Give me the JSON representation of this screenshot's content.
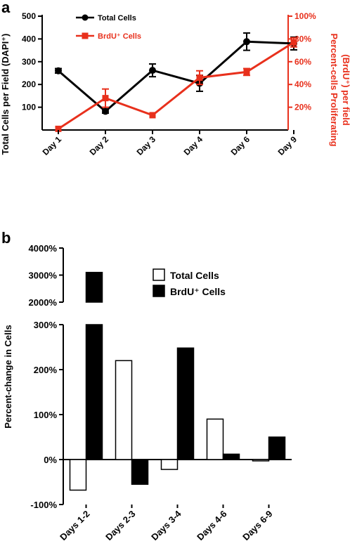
{
  "colors": {
    "black": "#000000",
    "red": "#e8301c"
  },
  "figure": {
    "panel_a_label": "a",
    "panel_b_label": "b"
  },
  "chart_data": [
    {
      "type": "line",
      "categories": [
        "Day 1",
        "Day 2",
        "Day 3",
        "Day 4",
        "Day 6",
        "Day 9"
      ],
      "ylabel": "Total Cells per Field (DAPI⁺)",
      "y2label_line1": "Percent-cells Proliferating",
      "y2label_line2": "(BrdU⁺) per field",
      "ylim": [
        0,
        500
      ],
      "y2lim": [
        0,
        100
      ],
      "y_ticks": [
        "100",
        "200",
        "300",
        "400",
        "500"
      ],
      "y2_ticks": [
        "20%",
        "40%",
        "60%",
        "80%",
        "100%"
      ],
      "legend_position": "top-left",
      "series": [
        {
          "name": "Total Cells",
          "axis": "left",
          "color": "#000000",
          "marker": "circle",
          "values": [
            260,
            82,
            262,
            205,
            388,
            380
          ],
          "errors": [
            10,
            8,
            28,
            35,
            38,
            28
          ]
        },
        {
          "name": "BrdU⁺ Cells",
          "axis": "right",
          "color": "#e8301c",
          "marker": "square",
          "values": [
            1,
            28,
            13,
            46,
            51,
            77
          ],
          "errors": [
            0,
            8,
            0,
            6,
            3,
            4
          ]
        }
      ]
    },
    {
      "type": "bar",
      "categories": [
        "Days 1-2",
        "Days 2-3",
        "Days 3-4",
        "Days 4-6",
        "Days 6-9"
      ],
      "ylabel": "Percent-change in Cells",
      "upper_ylim": [
        2000,
        4000
      ],
      "lower_ylim": [
        -100,
        300
      ],
      "upper_ticks": [
        "2000%",
        "3000%",
        "4000%"
      ],
      "lower_ticks": [
        "-100%",
        "0%",
        "100%",
        "200%",
        "300%"
      ],
      "legend_position": "top-right",
      "series": [
        {
          "name": "Total Cells",
          "fill": "#ffffff",
          "values": [
            -68,
            220,
            -22,
            90,
            -3
          ]
        },
        {
          "name": "BrdU⁺ Cells",
          "fill": "#000000",
          "values": [
            3100,
            -55,
            248,
            12,
            50
          ]
        }
      ]
    }
  ]
}
